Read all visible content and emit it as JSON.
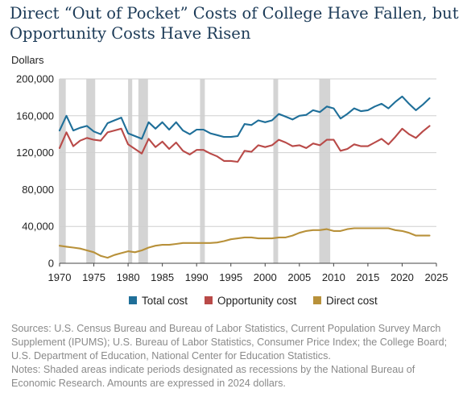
{
  "title_lines": [
    "Direct “Out of Pocket” Costs of College Have Fallen, but",
    "Opportunity Costs Have Risen"
  ],
  "notes": {
    "sources": "Sources: U.S. Census Bureau and Bureau of Labor Statistics, Current Population Survey March Supplement (IPUMS); U.S. Bureau of Labor Statistics, Consumer Price Index; the College Board; U.S. Department of Education, National Center for Education Statistics.",
    "shading_note": "Notes: Shaded areas indicate periods designated as recessions by the National Bureau of Economic Research. Amounts are expressed in 2024 dollars."
  },
  "colors": {
    "total": "#1f6f99",
    "opportunity": "#b94a48",
    "direct": "#b8913a",
    "recession": "#d4d4d4",
    "axis_text": "#222222"
  },
  "chart_data": {
    "type": "line",
    "title": "Direct “Out of Pocket” Costs of College Have Fallen, but Opportunity Costs Have Risen",
    "ylabel": "Dollars",
    "xlabel": "",
    "xlim": [
      1970,
      2025
    ],
    "ylim": [
      0,
      200000
    ],
    "x_ticks": [
      1970,
      1975,
      1980,
      1985,
      1990,
      1995,
      2000,
      2005,
      2010,
      2015,
      2020,
      2025
    ],
    "y_ticks": [
      0,
      40000,
      80000,
      120000,
      160000,
      200000
    ],
    "y_tick_labels": [
      "0",
      "40,000",
      "80,000",
      "120,000",
      "160,000",
      "200,000"
    ],
    "grid": "horizontal",
    "legend": "bottom",
    "recessions": [
      [
        1969.9,
        1970.9
      ],
      [
        1973.9,
        1975.2
      ],
      [
        1980.0,
        1980.6
      ],
      [
        1981.5,
        1982.9
      ],
      [
        1990.5,
        1991.2
      ],
      [
        2001.2,
        2001.9
      ],
      [
        2007.9,
        2009.5
      ]
    ],
    "x": [
      1970,
      1971,
      1972,
      1973,
      1974,
      1975,
      1976,
      1977,
      1978,
      1979,
      1980,
      1981,
      1982,
      1983,
      1984,
      1985,
      1986,
      1987,
      1988,
      1989,
      1990,
      1991,
      1992,
      1993,
      1994,
      1995,
      1996,
      1997,
      1998,
      1999,
      2000,
      2001,
      2002,
      2003,
      2004,
      2005,
      2006,
      2007,
      2008,
      2009,
      2010,
      2011,
      2012,
      2013,
      2014,
      2015,
      2016,
      2017,
      2018,
      2019,
      2020,
      2021,
      2022,
      2023,
      2024
    ],
    "series": [
      {
        "name": "Total cost",
        "key": "total",
        "values": [
          144000,
          160000,
          144000,
          147000,
          149000,
          143000,
          140000,
          152000,
          155000,
          158000,
          141000,
          138000,
          135000,
          153000,
          146000,
          153000,
          145000,
          153000,
          144000,
          140000,
          145000,
          145000,
          141000,
          139000,
          137000,
          137000,
          138000,
          151000,
          150000,
          155000,
          153000,
          155000,
          162000,
          159000,
          156000,
          160000,
          161000,
          166000,
          164000,
          170000,
          168000,
          157000,
          162000,
          168000,
          165000,
          166000,
          170000,
          173000,
          168000,
          175000,
          181000,
          173000,
          166000,
          172000,
          179000
        ]
      },
      {
        "name": "Opportunity cost",
        "key": "opportunity",
        "values": [
          125000,
          142000,
          127000,
          133000,
          136000,
          134000,
          133000,
          142000,
          144000,
          146000,
          129000,
          124000,
          119000,
          135000,
          126000,
          132000,
          124000,
          131000,
          122000,
          118000,
          123000,
          123000,
          119000,
          116000,
          111000,
          111000,
          110000,
          122000,
          121000,
          128000,
          126000,
          128000,
          134000,
          131000,
          127000,
          128000,
          125000,
          130000,
          128000,
          134000,
          134000,
          122000,
          124000,
          129000,
          127000,
          127000,
          131000,
          135000,
          129000,
          137000,
          146000,
          140000,
          136000,
          143000,
          149000
        ]
      },
      {
        "name": "Direct cost",
        "key": "direct",
        "values": [
          19000,
          18000,
          17000,
          16000,
          14000,
          12000,
          8000,
          6000,
          9000,
          11000,
          13000,
          12000,
          14000,
          17000,
          19000,
          20000,
          20000,
          21000,
          22000,
          22000,
          22000,
          22000,
          22000,
          22500,
          24000,
          26000,
          27000,
          28000,
          28000,
          27000,
          27000,
          27000,
          28000,
          28000,
          30000,
          33000,
          35000,
          36000,
          36000,
          37000,
          35000,
          35000,
          37000,
          38000,
          38000,
          38000,
          38000,
          38000,
          38000,
          36000,
          35000,
          33000,
          30000,
          30000,
          30000
        ]
      }
    ]
  }
}
